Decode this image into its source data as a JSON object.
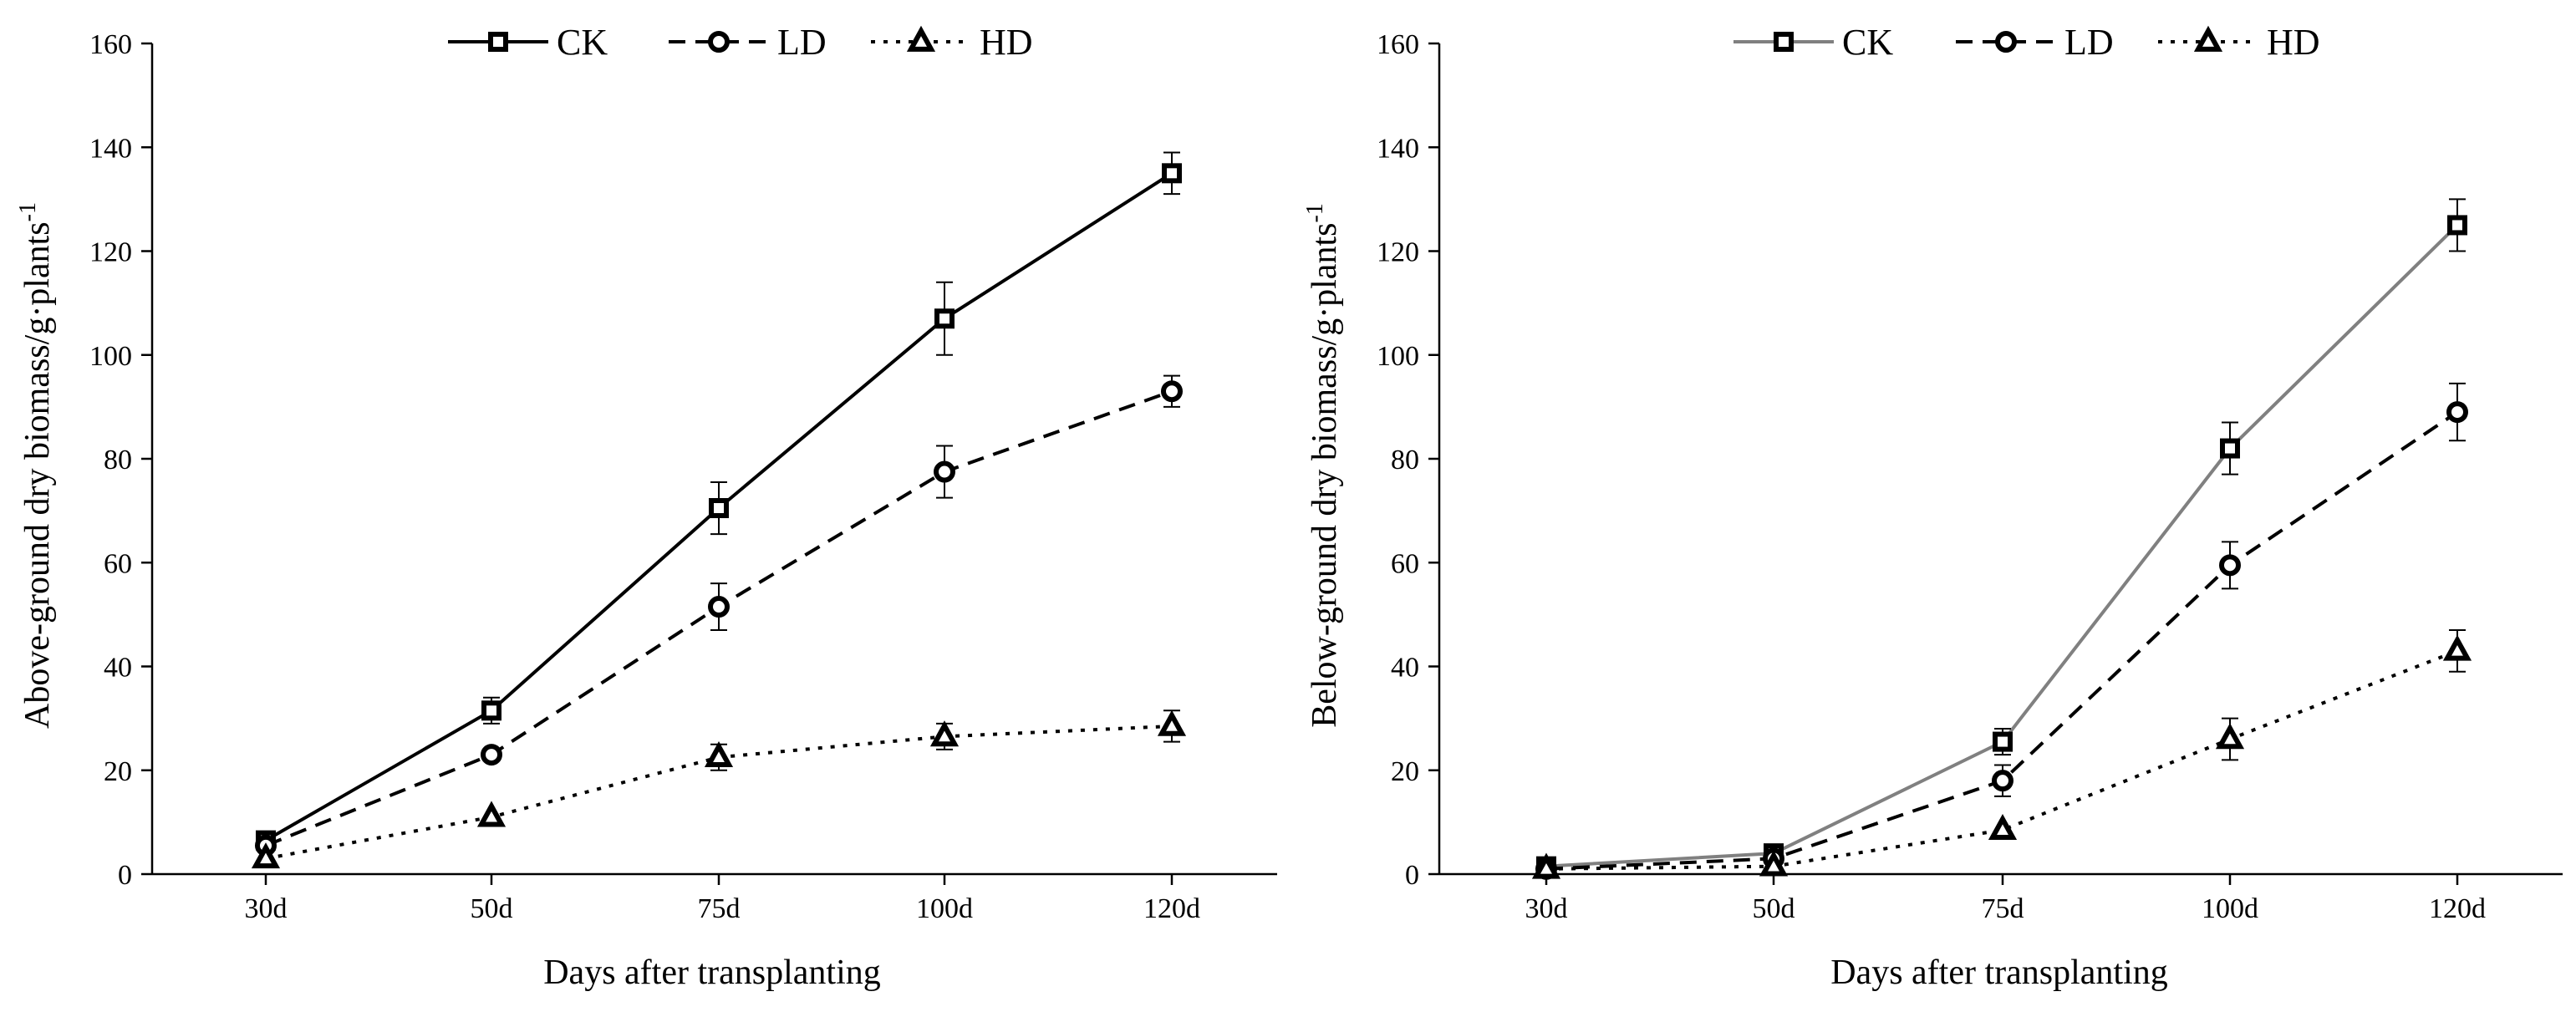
{
  "chart_data": [
    {
      "type": "line",
      "id": "above",
      "categories": [
        "30d",
        "50d",
        "75d",
        "100d",
        "120d"
      ],
      "xlabel": "Days after transplanting",
      "ylabel": "Above-ground dry biomass/g·plants",
      "ylabel_superscript": "-1",
      "ylim": [
        0,
        160
      ],
      "yticks": [
        0,
        20,
        40,
        60,
        80,
        100,
        120,
        140,
        160
      ],
      "grid": false,
      "legend_position": "top",
      "series": [
        {
          "name": "CK",
          "values": [
            6.5,
            31.5,
            70.5,
            107,
            135
          ],
          "errors": [
            1.5,
            2.5,
            5,
            7,
            4
          ],
          "color": "#000000",
          "dash": "solid",
          "marker": "square"
        },
        {
          "name": "LD",
          "values": [
            5.5,
            23,
            51.5,
            77.5,
            93
          ],
          "errors": [
            1,
            1.5,
            4.5,
            5,
            3
          ],
          "color": "#000000",
          "dash": "dashed",
          "marker": "circle"
        },
        {
          "name": "HD",
          "values": [
            3,
            11,
            22.5,
            26.5,
            28.5
          ],
          "errors": [
            0.5,
            1,
            2.5,
            2.5,
            3
          ],
          "color": "#000000",
          "dash": "dotted",
          "marker": "triangle"
        }
      ]
    },
    {
      "type": "line",
      "id": "below",
      "categories": [
        "30d",
        "50d",
        "75d",
        "100d",
        "120d"
      ],
      "xlabel": "Days after transplanting",
      "ylabel": "Below-ground dry biomass/g·plants",
      "ylabel_superscript": "-1",
      "ylim": [
        0,
        160
      ],
      "yticks": [
        0,
        20,
        40,
        60,
        80,
        100,
        120,
        140,
        160
      ],
      "grid": false,
      "legend_position": "top",
      "series": [
        {
          "name": "CK",
          "values": [
            1.5,
            4,
            25.5,
            82,
            125
          ],
          "errors": [
            0.5,
            0.5,
            2.5,
            5,
            5
          ],
          "color": "#808080",
          "dash": "solid",
          "marker": "square"
        },
        {
          "name": "LD",
          "values": [
            1,
            3,
            18,
            59.5,
            89
          ],
          "errors": [
            0.5,
            0.5,
            3,
            4.5,
            5.5
          ],
          "color": "#000000",
          "dash": "dashed",
          "marker": "circle"
        },
        {
          "name": "HD",
          "values": [
            1,
            1.5,
            8.5,
            26,
            43
          ],
          "errors": [
            0.3,
            0.3,
            1.5,
            4,
            4
          ],
          "color": "#000000",
          "dash": "dotted",
          "marker": "triangle"
        }
      ]
    }
  ]
}
